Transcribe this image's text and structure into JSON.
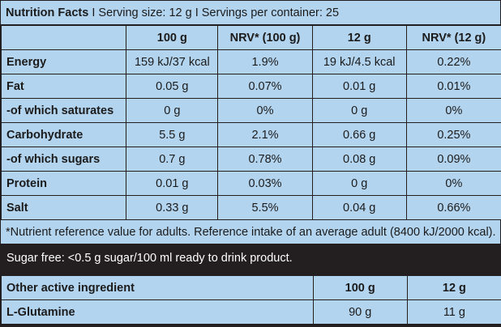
{
  "header": {
    "title": "Nutrition Facts",
    "separator1": " I ",
    "serving": "Serving size: 12 g",
    "separator2": " I ",
    "servings": "Servings per container: 25"
  },
  "table": {
    "columns": [
      "",
      "100 g",
      "NRV* (100 g)",
      "12 g",
      "NRV* (12 g)"
    ],
    "rows": [
      {
        "label": "Energy",
        "v100": "159 kJ/37 kcal",
        "nrv100": "1.9%",
        "v12": "19 kJ/4.5 kcal",
        "nrv12": "0.22%"
      },
      {
        "label": "Fat",
        "v100": "0.05 g",
        "nrv100": "0.07%",
        "v12": "0.01 g",
        "nrv12": "0.01%"
      },
      {
        "label": "-of which saturates",
        "v100": "0 g",
        "nrv100": "0%",
        "v12": "0 g",
        "nrv12": "0%"
      },
      {
        "label": "Carbohydrate",
        "v100": "5.5 g",
        "nrv100": "2.1%",
        "v12": "0.66 g",
        "nrv12": "0.25%"
      },
      {
        "label": "-of which sugars",
        "v100": "0.7 g",
        "nrv100": "0.78%",
        "v12": "0.08 g",
        "nrv12": "0.09%"
      },
      {
        "label": "Protein",
        "v100": "0.01 g",
        "nrv100": "0.03%",
        "v12": "0 g",
        "nrv12": "0%"
      },
      {
        "label": "Salt",
        "v100": "0.33 g",
        "nrv100": "5.5%",
        "v12": "0.04 g",
        "nrv12": "0.66%"
      }
    ]
  },
  "footnote": "*Nutrient reference value for adults. Reference intake of an average adult (8400 kJ/2000 kcal).",
  "sugar_note": "Sugar free: <0.5 g sugar/100 ml ready to drink product.",
  "active": {
    "columns": [
      "Other active ingredient",
      "100 g",
      "12 g"
    ],
    "rows": [
      {
        "label": "L-Glutamine",
        "v100": "90 g",
        "v12": "11 g"
      }
    ]
  }
}
